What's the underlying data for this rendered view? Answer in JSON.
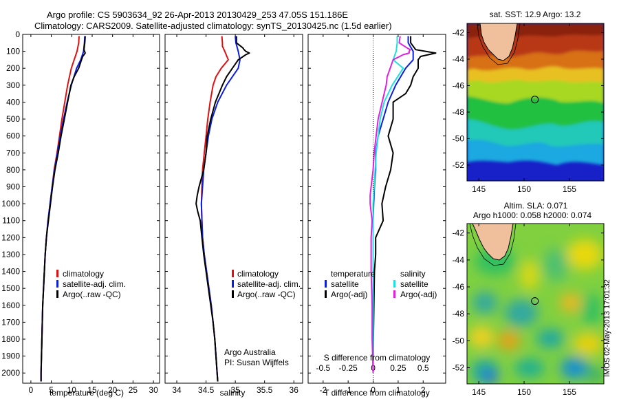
{
  "title_line1": "Argo profile: CS 5903634_92 26-Apr-2013 20130429_253 47.05S 151.186E",
  "title_line2": "Climatology: CARS2009. Satellite-adjusted climatology: synTS_20130425.nc (1.5d earlier)",
  "side_stamp": "IMOS 02-May-2013 17:01:32",
  "colors": {
    "climatology": "#e01010",
    "satellite": "#0a1ee0",
    "argo": "#000000",
    "satellite_salinity": "#20e0e0",
    "argo_salinity": "#e020e0"
  },
  "chart_data": [
    {
      "type": "line",
      "panel": "temperature",
      "xlabel": "temperature (deg C)",
      "x_ticks": [
        0,
        5,
        10,
        15,
        20,
        25,
        30
      ],
      "xlim": [
        -2,
        31.5
      ],
      "y_ticks": [
        0,
        100,
        200,
        300,
        400,
        500,
        600,
        700,
        800,
        900,
        1000,
        1100,
        1200,
        1300,
        1400,
        1500,
        1600,
        1700,
        1800,
        1900,
        2000
      ],
      "ylim": [
        0,
        2060
      ],
      "y_reversed": true,
      "legend": {
        "placement": "lower-middle",
        "entries": [
          "climatology",
          "satellite-adj. clim.",
          "Argo(..raw -QC)"
        ]
      },
      "series": [
        {
          "name": "climatology",
          "depth": [
            10,
            50,
            100,
            150,
            200,
            300,
            400,
            500,
            600,
            700,
            800,
            900,
            1000,
            1100,
            1200,
            1300,
            1400,
            1500,
            1600,
            1700,
            1800,
            1900,
            2000,
            2050
          ],
          "values": [
            11.8,
            11.7,
            11.3,
            10.6,
            9.9,
            9.0,
            8.3,
            7.6,
            7.0,
            6.4,
            5.7,
            5.2,
            4.7,
            4.2,
            3.8,
            3.5,
            3.3,
            3.1,
            2.9,
            2.8,
            2.7,
            2.6,
            2.5,
            2.5
          ]
        },
        {
          "name": "satellite-adj. clim.",
          "depth": [
            10,
            50,
            100,
            150,
            200,
            300,
            400,
            500,
            600,
            700,
            800,
            900,
            1000,
            1100,
            1200,
            1300,
            1400,
            1500,
            1600,
            1700,
            1800,
            1900,
            2000,
            2050
          ],
          "values": [
            13.2,
            13.1,
            12.9,
            12.2,
            11.2,
            9.9,
            8.9,
            8.0,
            7.2,
            6.5,
            5.8,
            5.2,
            4.7,
            4.2,
            3.8,
            3.5,
            3.3,
            3.1,
            2.9,
            2.8,
            2.7,
            2.6,
            2.5,
            2.5
          ]
        },
        {
          "name": "Argo(..raw -QC)",
          "depth": [
            10,
            50,
            90,
            110,
            130,
            150,
            200,
            250,
            300,
            400,
            500,
            600,
            700,
            800,
            900,
            1000,
            1100,
            1200,
            1300,
            1400,
            1500,
            1600,
            1700,
            1800,
            1900,
            2000,
            2050
          ],
          "values": [
            13.3,
            13.2,
            13.0,
            13.3,
            12.7,
            12.4,
            11.7,
            10.6,
            9.8,
            9.0,
            8.2,
            7.4,
            6.7,
            5.9,
            5.3,
            4.8,
            4.3,
            3.8,
            3.5,
            3.3,
            3.1,
            2.9,
            2.8,
            2.7,
            2.6,
            2.5,
            2.5
          ]
        }
      ]
    },
    {
      "type": "line",
      "panel": "salinity",
      "xlabel": "salinity",
      "x_ticks": [
        34,
        34.5,
        35,
        35.5,
        36
      ],
      "xlim": [
        33.8,
        36.15
      ],
      "ylim": [
        0,
        2060
      ],
      "y_reversed": true,
      "legend": {
        "placement": "lower-right",
        "entries": [
          "climatology",
          "satellite-adj. clim.",
          "Argo(..raw -QC)"
        ]
      },
      "annotation": [
        "Argo Australia",
        "PI: Susan Wijffels"
      ],
      "series": [
        {
          "name": "climatology",
          "depth": [
            10,
            50,
            70,
            100,
            150,
            200,
            250,
            300,
            400,
            500,
            600,
            700,
            800,
            900,
            1000,
            1100,
            1200,
            1300,
            1400,
            1500,
            1600,
            1700,
            1800,
            1900,
            2000,
            2050
          ],
          "values": [
            34.77,
            34.78,
            34.78,
            34.82,
            34.88,
            34.76,
            34.67,
            34.62,
            34.57,
            34.53,
            34.5,
            34.47,
            34.44,
            34.43,
            34.42,
            34.43,
            34.44,
            34.47,
            34.51,
            34.55,
            34.59,
            34.62,
            34.65,
            34.67,
            34.69,
            34.7
          ]
        },
        {
          "name": "satellite-adj. clim.",
          "depth": [
            10,
            50,
            100,
            150,
            200,
            300,
            400,
            500,
            600,
            700,
            800,
            900,
            1000,
            1100,
            1200,
            1300,
            1400,
            1500,
            1600,
            1700,
            1800,
            1900,
            2000,
            2050
          ],
          "values": [
            35.0,
            35.01,
            35.05,
            35.08,
            35.05,
            34.85,
            34.7,
            34.6,
            34.54,
            34.5,
            34.46,
            34.44,
            34.42,
            34.43,
            34.44,
            34.47,
            34.51,
            34.55,
            34.59,
            34.62,
            34.65,
            34.67,
            34.69,
            34.7
          ]
        },
        {
          "name": "Argo(..raw -QC)",
          "depth": [
            10,
            50,
            80,
            90,
            100,
            110,
            120,
            150,
            200,
            250,
            300,
            400,
            500,
            600,
            700,
            800,
            850,
            900,
            950,
            1000,
            1050,
            1100,
            1200,
            1300,
            1400,
            1500,
            1600,
            1700,
            1800,
            1900,
            2000,
            2050
          ],
          "values": [
            35.02,
            35.02,
            35.13,
            35.15,
            35.18,
            35.24,
            35.18,
            35.05,
            34.95,
            34.85,
            34.78,
            34.66,
            34.58,
            34.52,
            34.5,
            34.46,
            34.42,
            34.38,
            34.35,
            34.33,
            34.36,
            34.4,
            34.43,
            34.46,
            34.5,
            34.54,
            34.58,
            34.62,
            34.65,
            34.67,
            34.69,
            34.7
          ]
        }
      ]
    },
    {
      "type": "line",
      "panel": "difference",
      "xlabel": "T difference from climatology",
      "x_ticks": [
        -2,
        -1,
        0,
        1,
        2
      ],
      "xlim": [
        -2.6,
        2.9
      ],
      "secondary_xlabel": "S difference from climatology",
      "secondary_x_ticks": [
        "-0.5",
        "-0.25",
        "0",
        "0.25",
        "0.5"
      ],
      "ylim": [
        0,
        2060
      ],
      "y_reversed": true,
      "legend": {
        "placement": "lower-middle",
        "entries": [
          "temperature",
          "satellite",
          "Argo(-adj)",
          "salinity",
          "satellite",
          "Argo(-adj)"
        ]
      },
      "series": [
        {
          "name": "temperature satellite",
          "depth": [
            10,
            50,
            100,
            150,
            200,
            300,
            400,
            500,
            600,
            700,
            800,
            900,
            1000,
            1100,
            1200,
            1300,
            1400,
            1600,
            1800,
            2000
          ],
          "values": [
            1.4,
            1.4,
            1.6,
            1.6,
            1.3,
            0.9,
            0.6,
            0.4,
            0.2,
            0.1,
            0.1,
            0.05,
            0.02,
            0.0,
            0.0,
            0.0,
            0.0,
            0.0,
            0.0,
            0.0
          ]
        },
        {
          "name": "temperature Argo(-adj)",
          "depth": [
            10,
            50,
            90,
            110,
            130,
            150,
            200,
            250,
            300,
            350,
            400,
            500,
            600,
            700,
            800,
            900,
            1000,
            1100,
            1200,
            1300,
            1400,
            1600,
            1800,
            2000
          ],
          "values": [
            1.5,
            1.5,
            1.7,
            2.5,
            1.9,
            1.8,
            1.8,
            1.6,
            1.5,
            1.3,
            0.8,
            0.8,
            0.6,
            0.8,
            0.7,
            0.5,
            0.35,
            0.4,
            0.1,
            0.1,
            0.05,
            0.03,
            0.01,
            0.0
          ]
        },
        {
          "name": "salinity satellite",
          "depth": [
            10,
            50,
            100,
            150,
            200,
            300,
            400,
            500,
            600,
            700,
            800,
            900,
            1000,
            1100,
            1200,
            1400,
            1600,
            1800,
            2000
          ],
          "values": [
            0.24,
            0.24,
            0.23,
            0.2,
            0.3,
            0.19,
            0.11,
            0.07,
            0.05,
            0.03,
            0.02,
            0.01,
            0.0,
            0.0,
            0.0,
            0.0,
            0.0,
            0.0,
            0.0
          ]
        },
        {
          "name": "salinity Argo(-adj)",
          "depth": [
            10,
            50,
            80,
            90,
            100,
            110,
            120,
            150,
            200,
            250,
            300,
            400,
            500,
            600,
            700,
            800,
            900,
            950,
            1000,
            1050,
            1100,
            1200,
            1300,
            1400,
            1600,
            1800,
            2000
          ],
          "values": [
            0.27,
            0.26,
            0.34,
            0.37,
            0.36,
            0.36,
            0.3,
            0.2,
            0.17,
            0.14,
            0.13,
            0.09,
            0.05,
            0.03,
            0.01,
            0.0,
            -0.02,
            -0.03,
            -0.03,
            -0.02,
            -0.01,
            -0.02,
            -0.02,
            -0.02,
            -0.01,
            -0.01,
            0.0
          ]
        }
      ]
    },
    {
      "type": "heatmap",
      "panel": "sst-map",
      "title": "sat. SST: 12.9 Argo: 13.2",
      "x_ticks": [
        145,
        150,
        155
      ],
      "xlim": [
        143.7,
        158.8
      ],
      "y_ticks": [
        -42,
        -44,
        -46,
        -48,
        -50,
        -52
      ],
      "ylim": [
        -53.2,
        -41.3
      ],
      "marker": {
        "lon": 151.19,
        "lat": -47.05
      }
    },
    {
      "type": "heatmap",
      "panel": "sla-map",
      "title": "Altim. SLA: 0.071",
      "subtitle": "Argo h1000: 0.058 h2000: 0.074",
      "x_ticks": [
        145,
        150,
        155
      ],
      "xlim": [
        143.7,
        158.8
      ],
      "y_ticks": [
        -42,
        -44,
        -46,
        -48,
        -50,
        -52
      ],
      "ylim": [
        -53.2,
        -41.3
      ],
      "marker": {
        "lon": 151.19,
        "lat": -47.05
      }
    }
  ]
}
